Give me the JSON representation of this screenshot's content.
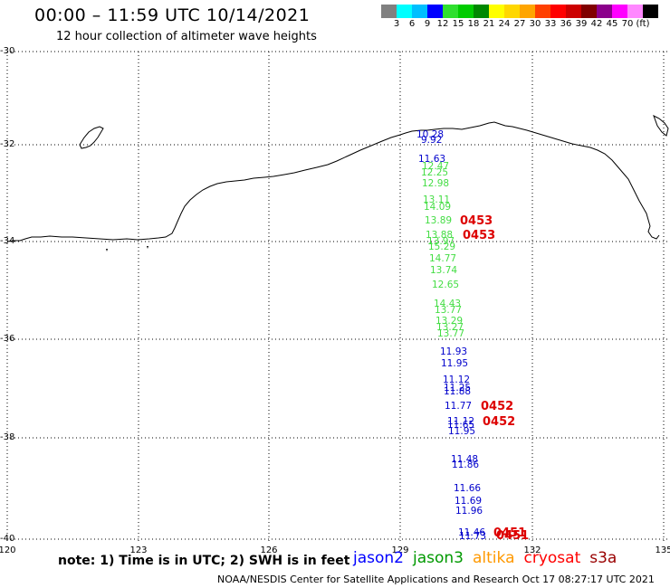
{
  "header": {
    "title": "00:00 – 11:59 UTC 10/14/2021",
    "subtitle": "12 hour collection of altimeter wave heights"
  },
  "scale": {
    "colors": [
      "#808080",
      "#00ffff",
      "#00bfff",
      "#0000ff",
      "#2fdf2f",
      "#00cc00",
      "#008800",
      "#ffff00",
      "#ffd700",
      "#ffa500",
      "#ff4000",
      "#ff0000",
      "#cc0000",
      "#800000",
      "#8b008b",
      "#ff00ff",
      "#ff88ff",
      "#000000"
    ],
    "labels": [
      "3",
      "6",
      "9",
      "12",
      "15",
      "18",
      "21",
      "24",
      "27",
      "30",
      "33",
      "36",
      "39",
      "42",
      "45",
      "70",
      "(ft)"
    ]
  },
  "axes": {
    "lat_labels": [
      "-30",
      "-32",
      "-34",
      "-36",
      "-38",
      "-40"
    ],
    "lon_labels": [
      "120",
      "123",
      "126",
      "129",
      "132",
      "135"
    ]
  },
  "observations": [
    {
      "text": "10.28",
      "color": "#0000cc"
    },
    {
      "text": "9.92",
      "color": "#0000cc"
    },
    {
      "text": "11.63",
      "color": "#0000cc"
    },
    {
      "text": "12.47",
      "color": "#44dd44"
    },
    {
      "text": "12.25",
      "color": "#44dd44"
    },
    {
      "text": "12.98",
      "color": "#44dd44"
    },
    {
      "text": "13.11",
      "color": "#44dd44"
    },
    {
      "text": "14.09",
      "color": "#44dd44"
    },
    {
      "text": "13.89",
      "color": "#44dd44"
    },
    {
      "text": "13.88",
      "color": "#44dd44"
    },
    {
      "text": "13.97",
      "color": "#44dd44"
    },
    {
      "text": "15.29",
      "color": "#44dd44"
    },
    {
      "text": "14.77",
      "color": "#44dd44"
    },
    {
      "text": "13.74",
      "color": "#44dd44"
    },
    {
      "text": "12.65",
      "color": "#44dd44"
    },
    {
      "text": "14.43",
      "color": "#44dd44"
    },
    {
      "text": "13.77",
      "color": "#44dd44"
    },
    {
      "text": "13.29",
      "color": "#44dd44"
    },
    {
      "text": "13.27",
      "color": "#44dd44"
    },
    {
      "text": "13.77",
      "color": "#44dd44"
    },
    {
      "text": "11.93",
      "color": "#0000cc"
    },
    {
      "text": "11.95",
      "color": "#0000cc"
    },
    {
      "text": "11.12",
      "color": "#0000cc"
    },
    {
      "text": "11.25",
      "color": "#0000cc"
    },
    {
      "text": "11.88",
      "color": "#0000cc"
    },
    {
      "text": "11.77",
      "color": "#0000cc"
    },
    {
      "text": "11.12",
      "color": "#0000cc"
    },
    {
      "text": "11.65",
      "color": "#0000cc"
    },
    {
      "text": "11.95",
      "color": "#0000cc"
    },
    {
      "text": "11.48",
      "color": "#0000cc"
    },
    {
      "text": "11.86",
      "color": "#0000cc"
    },
    {
      "text": "11.66",
      "color": "#0000cc"
    },
    {
      "text": "11.69",
      "color": "#0000cc"
    },
    {
      "text": "11.96",
      "color": "#0000cc"
    },
    {
      "text": "11.46",
      "color": "#0000cc"
    },
    {
      "text": "11.73",
      "color": "#0000cc"
    }
  ],
  "time_labels": [
    {
      "text": "0453",
      "color": "#dd0000"
    },
    {
      "text": "0453",
      "color": "#dd0000"
    },
    {
      "text": "0452",
      "color": "#dd0000"
    },
    {
      "text": "0452",
      "color": "#dd0000"
    },
    {
      "text": "0451",
      "color": "#dd0000"
    },
    {
      "text": "0451",
      "color": "#dd0000"
    }
  ],
  "note": "note: 1) Time is in UTC; 2) SWH is in feet",
  "legend": [
    {
      "label": "jason2",
      "color": "#0000ff"
    },
    {
      "label": "jason3",
      "color": "#009900"
    },
    {
      "label": "altika",
      "color": "#ff9900"
    },
    {
      "label": "cryosat",
      "color": "#ff0000"
    },
    {
      "label": "s3a",
      "color": "#990000"
    }
  ],
  "footer": "NOAA/NESDIS Center for Satellite Applications and Research   Oct 17 08:27:17 UTC 2021"
}
